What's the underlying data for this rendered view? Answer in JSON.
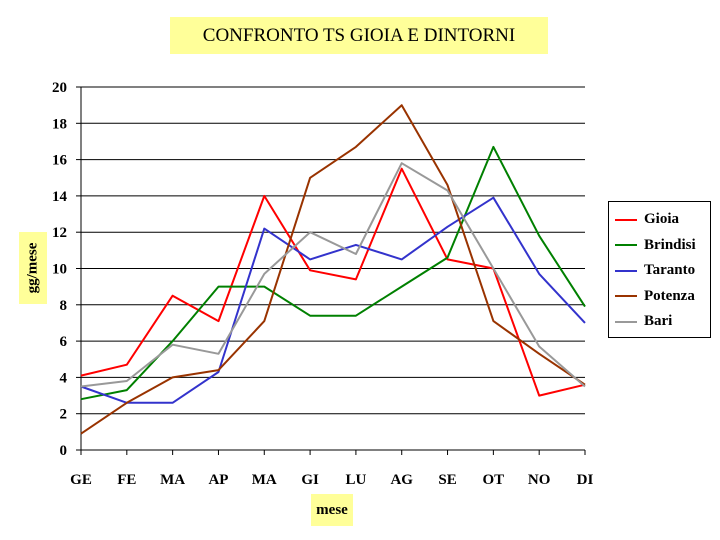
{
  "chart_data": {
    "type": "line",
    "title": "CONFRONTO  TS  GIOIA  E  DINTORNI",
    "xlabel": "mese",
    "ylabel": "gg/mese",
    "categories": [
      "GE",
      "FE",
      "MA",
      "AP",
      "MA",
      "GI",
      "LU",
      "AG",
      "SE",
      "OT",
      "NO",
      "DI"
    ],
    "ylim": [
      0,
      20
    ],
    "yticks": [
      0,
      2,
      4,
      6,
      8,
      10,
      12,
      14,
      16,
      18,
      20
    ],
    "grid": true,
    "legend_position": "right",
    "series": [
      {
        "name": "Gioia",
        "color": "#ff0000",
        "values": [
          4.1,
          4.7,
          8.5,
          7.1,
          14.0,
          9.9,
          9.4,
          15.5,
          10.5,
          10.0,
          3.0,
          3.6
        ]
      },
      {
        "name": "Brindisi",
        "color": "#008000",
        "values": [
          2.8,
          3.3,
          6.0,
          9.0,
          9.0,
          7.4,
          7.4,
          9.0,
          10.6,
          16.7,
          11.8,
          7.9
        ]
      },
      {
        "name": "Taranto",
        "color": "#3333cc",
        "values": [
          3.5,
          2.6,
          2.6,
          4.3,
          12.2,
          10.5,
          11.3,
          10.5,
          12.3,
          13.9,
          9.7,
          7.0
        ]
      },
      {
        "name": "Potenza",
        "color": "#993300",
        "values": [
          0.9,
          2.6,
          4.0,
          4.4,
          7.1,
          15.0,
          16.7,
          19.0,
          14.6,
          7.1,
          5.3,
          3.6
        ]
      },
      {
        "name": "Bari",
        "color": "#999999",
        "values": [
          3.5,
          3.8,
          5.8,
          5.3,
          9.7,
          12.0,
          10.8,
          15.8,
          14.3,
          10.0,
          5.7,
          3.5
        ]
      }
    ]
  }
}
